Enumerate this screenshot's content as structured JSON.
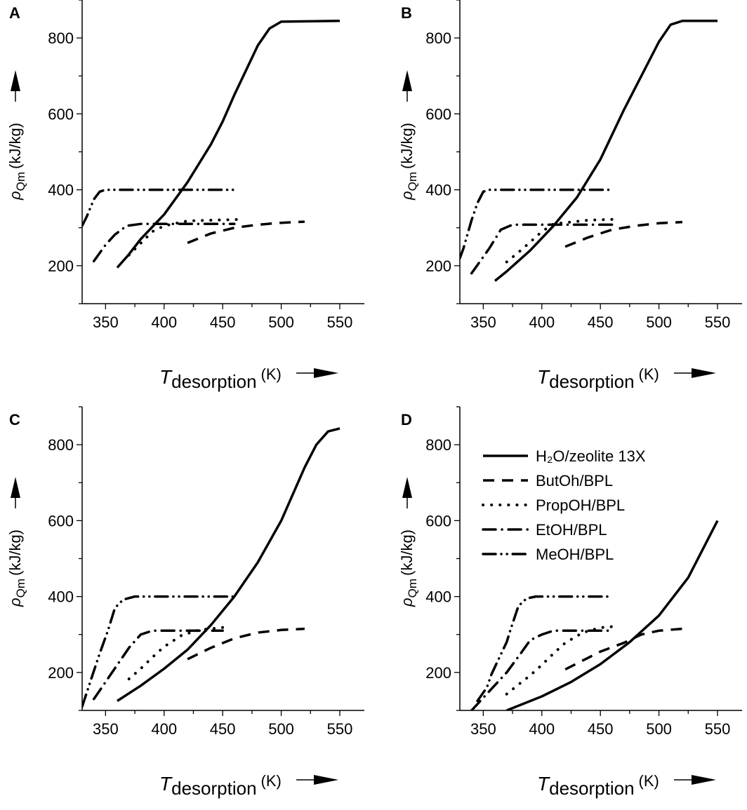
{
  "chart_data": [
    {
      "type": "line",
      "panel": "A",
      "xlim": [
        330,
        571
      ],
      "ylim": [
        100,
        900
      ],
      "xticks": [
        350,
        400,
        450,
        500,
        550
      ],
      "yticks": [
        200,
        400,
        600,
        800
      ],
      "series": [
        {
          "name": "H₂O/zeolite 13X",
          "style": "solid",
          "points": [
            [
              360,
              195
            ],
            [
              370,
              230
            ],
            [
              380,
              270
            ],
            [
              400,
              335
            ],
            [
              420,
              420
            ],
            [
              440,
              520
            ],
            [
              450,
              580
            ],
            [
              460,
              650
            ],
            [
              470,
              715
            ],
            [
              480,
              780
            ],
            [
              490,
              825
            ],
            [
              500,
              843
            ],
            [
              550,
              845
            ]
          ]
        },
        {
          "name": "ButOh/BPL",
          "style": "dash",
          "points": [
            [
              420,
              260
            ],
            [
              440,
              285
            ],
            [
              460,
              300
            ],
            [
              480,
              308
            ],
            [
              500,
              313
            ],
            [
              520,
              316
            ]
          ]
        },
        {
          "name": "PropOH/BPL",
          "style": "dot",
          "points": [
            [
              370,
              228
            ],
            [
              390,
              290
            ],
            [
              400,
              305
            ],
            [
              420,
              318
            ],
            [
              465,
              322
            ]
          ]
        },
        {
          "name": "EtOH/BPL",
          "style": "dash-dot",
          "points": [
            [
              340,
              212
            ],
            [
              350,
              255
            ],
            [
              358,
              282
            ],
            [
              368,
              305
            ],
            [
              380,
              310
            ],
            [
              460,
              310
            ]
          ]
        },
        {
          "name": "MeOH/BPL",
          "style": "dash-dot-dot",
          "points": [
            [
              330,
              305
            ],
            [
              334,
              330
            ],
            [
              340,
              375
            ],
            [
              345,
              395
            ],
            [
              350,
              400
            ],
            [
              460,
              400
            ]
          ]
        }
      ]
    },
    {
      "type": "line",
      "panel": "B",
      "xlim": [
        330,
        571
      ],
      "ylim": [
        100,
        900
      ],
      "xticks": [
        350,
        400,
        450,
        500,
        550
      ],
      "yticks": [
        200,
        400,
        600,
        800
      ],
      "series": [
        {
          "name": "H₂O/zeolite 13X",
          "style": "solid",
          "points": [
            [
              360,
              160
            ],
            [
              370,
              185
            ],
            [
              390,
              240
            ],
            [
              410,
              305
            ],
            [
              430,
              380
            ],
            [
              450,
              480
            ],
            [
              470,
              610
            ],
            [
              490,
              730
            ],
            [
              500,
              790
            ],
            [
              510,
              835
            ],
            [
              520,
              845
            ],
            [
              550,
              845
            ]
          ]
        },
        {
          "name": "ButOh/BPL",
          "style": "dash",
          "points": [
            [
              420,
              250
            ],
            [
              440,
              275
            ],
            [
              460,
              295
            ],
            [
              480,
              305
            ],
            [
              500,
              312
            ],
            [
              520,
              315
            ]
          ]
        },
        {
          "name": "PropOH/BPL",
          "style": "dot",
          "points": [
            [
              370,
              210
            ],
            [
              380,
              235
            ],
            [
              390,
              262
            ],
            [
              400,
              290
            ],
            [
              410,
              310
            ],
            [
              440,
              320
            ],
            [
              460,
              322
            ]
          ]
        },
        {
          "name": "EtOH/BPL",
          "style": "dash-dot",
          "points": [
            [
              340,
              180
            ],
            [
              355,
              245
            ],
            [
              365,
              295
            ],
            [
              375,
              308
            ],
            [
              460,
              308
            ]
          ]
        },
        {
          "name": "MeOH/BPL",
          "style": "dash-dot-dot",
          "points": [
            [
              330,
              220
            ],
            [
              333,
              245
            ],
            [
              340,
              320
            ],
            [
              345,
              365
            ],
            [
              350,
              395
            ],
            [
              355,
              400
            ],
            [
              460,
              400
            ]
          ]
        }
      ]
    },
    {
      "type": "line",
      "panel": "C",
      "xlim": [
        330,
        571
      ],
      "ylim": [
        100,
        900
      ],
      "xticks": [
        350,
        400,
        450,
        500,
        550
      ],
      "yticks": [
        200,
        400,
        600,
        800
      ],
      "series": [
        {
          "name": "H₂O/zeolite 13X",
          "style": "solid",
          "points": [
            [
              360,
              125
            ],
            [
              380,
              165
            ],
            [
              400,
              210
            ],
            [
              420,
              260
            ],
            [
              440,
              325
            ],
            [
              460,
              400
            ],
            [
              480,
              490
            ],
            [
              500,
              600
            ],
            [
              520,
              740
            ],
            [
              530,
              800
            ],
            [
              540,
              835
            ],
            [
              550,
              843
            ]
          ]
        },
        {
          "name": "ButOh/BPL",
          "style": "dash",
          "points": [
            [
              420,
              235
            ],
            [
              440,
              265
            ],
            [
              460,
              290
            ],
            [
              480,
              305
            ],
            [
              500,
              312
            ],
            [
              520,
              315
            ]
          ]
        },
        {
          "name": "PropOH/BPL",
          "style": "dot",
          "points": [
            [
              370,
              183
            ],
            [
              380,
              210
            ],
            [
              390,
              240
            ],
            [
              400,
              268
            ],
            [
              415,
              298
            ],
            [
              430,
              312
            ],
            [
              455,
              320
            ]
          ]
        },
        {
          "name": "EtOH/BPL",
          "style": "dash-dot",
          "points": [
            [
              340,
              130
            ],
            [
              350,
              175
            ],
            [
              360,
              220
            ],
            [
              370,
              265
            ],
            [
              380,
              300
            ],
            [
              390,
              310
            ],
            [
              450,
              310
            ]
          ]
        },
        {
          "name": "MeOH/BPL",
          "style": "dash-dot-dot",
          "points": [
            [
              330,
              110
            ],
            [
              338,
              185
            ],
            [
              345,
              250
            ],
            [
              352,
              310
            ],
            [
              358,
              370
            ],
            [
              365,
              392
            ],
            [
              375,
              400
            ],
            [
              460,
              400
            ]
          ]
        }
      ]
    },
    {
      "type": "line",
      "panel": "D",
      "xlim": [
        330,
        571
      ],
      "ylim": [
        100,
        900
      ],
      "xticks": [
        350,
        400,
        450,
        500,
        550
      ],
      "yticks": [
        200,
        400,
        600,
        800
      ],
      "legend": "top-right",
      "series": [
        {
          "name": "H₂O/zeolite 13X",
          "style": "solid",
          "points": [
            [
              370,
              100
            ],
            [
              400,
              137
            ],
            [
              425,
              175
            ],
            [
              450,
              222
            ],
            [
              475,
              280
            ],
            [
              500,
              350
            ],
            [
              525,
              450
            ],
            [
              550,
              600
            ]
          ]
        },
        {
          "name": "ButOh/BPL",
          "style": "dash",
          "points": [
            [
              420,
              208
            ],
            [
              450,
              255
            ],
            [
              470,
              278
            ],
            [
              485,
              300
            ],
            [
              500,
              310
            ],
            [
              520,
              315
            ]
          ]
        },
        {
          "name": "PropOH/BPL",
          "style": "dot",
          "points": [
            [
              370,
              143
            ],
            [
              380,
              168
            ],
            [
              390,
              192
            ],
            [
              400,
              220
            ],
            [
              410,
              250
            ],
            [
              420,
              278
            ],
            [
              435,
              305
            ],
            [
              450,
              318
            ],
            [
              465,
              322
            ]
          ]
        },
        {
          "name": "EtOH/BPL",
          "style": "dash-dot",
          "points": [
            [
              340,
              100
            ],
            [
              355,
              150
            ],
            [
              370,
              200
            ],
            [
              382,
              250
            ],
            [
              390,
              285
            ],
            [
              400,
              300
            ],
            [
              410,
              310
            ],
            [
              460,
              310
            ]
          ]
        },
        {
          "name": "MeOH/BPL",
          "style": "dash-dot-dot",
          "points": [
            [
              345,
              125
            ],
            [
              353,
              160
            ],
            [
              357,
              195
            ],
            [
              362,
              228
            ],
            [
              370,
              280
            ],
            [
              373,
              310
            ],
            [
              380,
              375
            ],
            [
              387,
              395
            ],
            [
              395,
              400
            ],
            [
              460,
              400
            ]
          ]
        }
      ]
    }
  ],
  "axes": {
    "ylabel": {
      "symbol": "ρ",
      "subscript": "Qm",
      "unit": "(kJ/kg)"
    },
    "xlabel": {
      "symbol": "T",
      "subscript": "desorption",
      "unit": "(K)"
    }
  },
  "legend": [
    "H₂O/zeolite 13X",
    "ButOh/BPL",
    "PropOH/BPL",
    "EtOH/BPL",
    "MeOH/BPL"
  ],
  "colors": {
    "line": "#000000",
    "background": "#ffffff"
  }
}
